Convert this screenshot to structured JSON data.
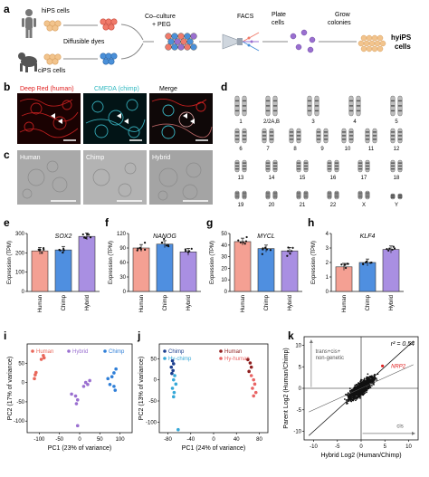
{
  "panels": {
    "a": "a",
    "b": "b",
    "c": "c",
    "d": "d",
    "e": "e",
    "f": "f",
    "g": "g",
    "h": "h",
    "i": "i",
    "j": "j",
    "k": "k"
  },
  "panel_a": {
    "hips": "hiPS cells",
    "cips": "ciPS cells",
    "dyes": "Diffusible dyes",
    "coculture1": "Co–culture",
    "coculture2": "+ PEG",
    "facs": "FACS",
    "plate1": "Plate",
    "plate2": "cells",
    "grow1": "Grow",
    "grow2": "colonies",
    "hyips1": "hyiPS",
    "hyips2": "cells",
    "colors": {
      "human": "#f07a6a",
      "chimp": "#4a90d9",
      "hybrid": "#9a6fd0",
      "hyips": "#f2c48d"
    }
  },
  "panel_b": {
    "red": "Deep Red (human)",
    "cyan": "CMFDA (chimp)",
    "merge": "Merge"
  },
  "panel_c": {
    "human": "Human",
    "chimp": "Chimp",
    "hybrid": "Hybrid"
  },
  "panel_d": {
    "labels": [
      "1",
      "2/2A,B",
      "3",
      "4",
      "5",
      "6",
      "7",
      "8",
      "9",
      "10",
      "11",
      "12",
      "13",
      "14",
      "15",
      "16",
      "17",
      "18",
      "19",
      "20",
      "21",
      "22",
      "X",
      "Y"
    ]
  },
  "chart_data": [
    {
      "panel": "e",
      "type": "bar",
      "title": "SOX2",
      "ylabel": "Expression (TPM)",
      "categories": [
        "Human",
        "Chimp",
        "Hybrid"
      ],
      "values": [
        210,
        215,
        285
      ],
      "ylim": [
        0,
        300
      ],
      "yticks": [
        "0",
        "100",
        "200",
        "300"
      ]
    },
    {
      "panel": "f",
      "type": "bar",
      "title": "NANOG",
      "ylabel": "Expression (TPM)",
      "categories": [
        "Human",
        "Chimp",
        "Hybrid"
      ],
      "values": [
        90,
        98,
        82
      ],
      "ylim": [
        0,
        120
      ],
      "yticks": [
        "0",
        "30",
        "60",
        "90",
        "120"
      ]
    },
    {
      "panel": "g",
      "type": "bar",
      "title": "MYCL",
      "ylabel": "Expression (TPM)",
      "categories": [
        "Human",
        "Chimp",
        "Hybrid"
      ],
      "values": [
        43,
        37,
        35
      ],
      "ylim": [
        0,
        50
      ],
      "yticks": [
        "0",
        "10",
        "20",
        "30",
        "40",
        "50"
      ]
    },
    {
      "panel": "h",
      "type": "bar",
      "title": "KLF4",
      "ylabel": "Expression (TPM)",
      "categories": [
        "Human",
        "Chimp",
        "Hybrid"
      ],
      "values": [
        1.7,
        2.0,
        2.9
      ],
      "ylim": [
        0,
        4
      ],
      "yticks": [
        "0",
        "1",
        "2",
        "3",
        "4"
      ]
    },
    {
      "panel": "i",
      "type": "scatter",
      "xlabel": "PC1 (23% of variance)",
      "ylabel": "PC2 (17% of variance)",
      "xticks": [
        "-100",
        "-50",
        "0",
        "50",
        "100"
      ],
      "yticks": [
        "-100",
        "-50",
        "0",
        "50"
      ],
      "legend": [
        "Human",
        "Hybrid",
        "Chimp"
      ]
    },
    {
      "panel": "j",
      "type": "scatter",
      "xlabel": "PC1 (24% of variance)",
      "ylabel": "PC2 (13% of variance)",
      "xticks": [
        "-80",
        "-40",
        "0",
        "40",
        "80"
      ],
      "yticks": [
        "-100",
        "-50",
        "0",
        "50"
      ],
      "legend": [
        "Chimp",
        "Hy-chimp",
        "Human",
        "Hy-human"
      ]
    },
    {
      "panel": "k",
      "type": "scatter",
      "xlabel": "Hybrid Log2 (Human/Chimp)",
      "ylabel": "Parent Log2 (Human/Chimp)",
      "xticks": [
        "-10",
        "-5",
        "0",
        "5",
        "10"
      ],
      "yticks": [
        "-10",
        "-5",
        "0",
        "5",
        "10"
      ],
      "r2": "r² = 0.54",
      "gene": "NRP2",
      "annot1": "trans+cis+",
      "annot2": "non-genetic",
      "annot3": "cis"
    }
  ],
  "colors": {
    "human": "#f4a093",
    "chimp": "#4f8fe0",
    "hybrid": "#a98fe2",
    "human_pt": "#e9675a",
    "hybrid_pt": "#9a6fd0",
    "chimp_pt": "#2f7fd8",
    "chimp_dark": "#1c3f8f",
    "hychimp": "#35a8d8",
    "human_dark": "#8f1f1f",
    "hyhuman": "#e96464"
  }
}
